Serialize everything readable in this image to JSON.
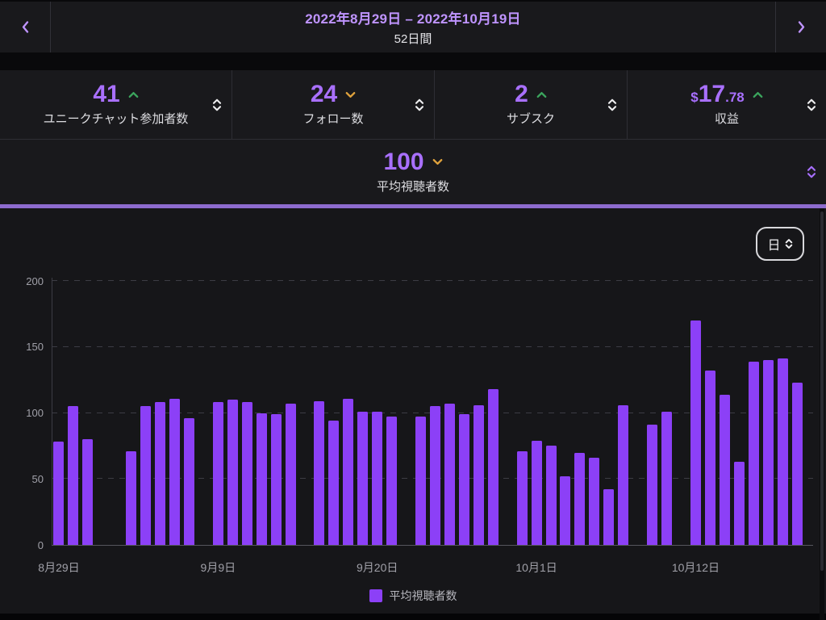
{
  "header": {
    "date_range": "2022年8月29日 – 2022年10月19日",
    "duration": "52日間"
  },
  "stats": [
    {
      "value_prefix": "",
      "value_main": "41",
      "value_decimal": "",
      "trend": "up",
      "label": "ユニークチャット参加者数"
    },
    {
      "value_prefix": "",
      "value_main": "24",
      "value_decimal": "",
      "trend": "down",
      "label": "フォロー数"
    },
    {
      "value_prefix": "",
      "value_main": "2",
      "value_decimal": "",
      "trend": "up",
      "label": "サブスク"
    },
    {
      "value_prefix": "$",
      "value_main": "17",
      "value_decimal": ".78",
      "trend": "up",
      "label": "収益"
    }
  ],
  "selected_metric": {
    "value_main": "100",
    "trend": "down",
    "label": "平均視聴者数",
    "selected": true
  },
  "chart_controls": {
    "interval_label": "日"
  },
  "legend": {
    "label": "平均視聴者数"
  },
  "colors": {
    "accent_purple": "#a970ff",
    "light_purple": "#bf94ff",
    "bar_purple": "#8c40f7",
    "trend_up_green": "#3ba55d",
    "trend_down_orange": "#dfa23c",
    "selected_underline": "#8d6bce"
  },
  "chart_data": {
    "type": "bar",
    "title": "",
    "ylabel": "",
    "xlabel": "",
    "ylim": [
      0,
      200
    ],
    "yticks": [
      0,
      50,
      100,
      150,
      200
    ],
    "grid": "dashed-horizontal",
    "legend_position": "bottom-center",
    "num_slots": 52,
    "x_ticks": [
      {
        "slot": 0,
        "label": "8月29日"
      },
      {
        "slot": 11,
        "label": "9月9日"
      },
      {
        "slot": 22,
        "label": "9月20日"
      },
      {
        "slot": 33,
        "label": "10月1日"
      },
      {
        "slot": 44,
        "label": "10月12日"
      }
    ],
    "series": [
      {
        "name": "平均視聴者数",
        "color": "#8c40f7",
        "points": [
          [
            0,
            78
          ],
          [
            1,
            105
          ],
          [
            2,
            80
          ],
          [
            5,
            71
          ],
          [
            6,
            105
          ],
          [
            7,
            108
          ],
          [
            8,
            111
          ],
          [
            9,
            96
          ],
          [
            11,
            108
          ],
          [
            12,
            110
          ],
          [
            13,
            108
          ],
          [
            14,
            100
          ],
          [
            15,
            99
          ],
          [
            16,
            107
          ],
          [
            18,
            109
          ],
          [
            19,
            94
          ],
          [
            20,
            111
          ],
          [
            21,
            101
          ],
          [
            22,
            101
          ],
          [
            23,
            97
          ],
          [
            25,
            97
          ],
          [
            26,
            105
          ],
          [
            27,
            107
          ],
          [
            28,
            99
          ],
          [
            29,
            106
          ],
          [
            30,
            118
          ],
          [
            32,
            71
          ],
          [
            33,
            79
          ],
          [
            34,
            75
          ],
          [
            35,
            52
          ],
          [
            36,
            70
          ],
          [
            37,
            66
          ],
          [
            38,
            42
          ],
          [
            39,
            106
          ],
          [
            41,
            91
          ],
          [
            42,
            101
          ],
          [
            44,
            170
          ],
          [
            45,
            132
          ],
          [
            46,
            114
          ],
          [
            47,
            63
          ],
          [
            48,
            139
          ],
          [
            49,
            140
          ],
          [
            50,
            141
          ],
          [
            51,
            123
          ]
        ]
      }
    ]
  }
}
